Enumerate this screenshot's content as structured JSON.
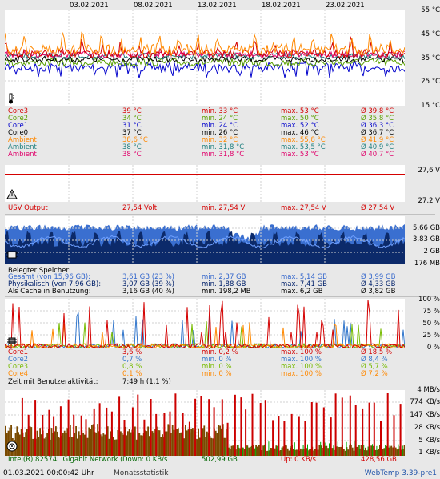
{
  "dates": [
    "03.02.2021",
    "08.02.2021",
    "13.02.2021",
    "18.02.2021",
    "23.02.2021"
  ],
  "temp": {
    "axis": [
      "55 °C",
      "45 °C",
      "35 °C",
      "25 °C",
      "15 °C"
    ],
    "rows": [
      {
        "name": "Core3",
        "cur": "39 °C",
        "min": "min. 33 °C",
        "max": "max. 53 °C",
        "avg": "Ø 39,8 °C",
        "color": "#d40000"
      },
      {
        "name": "Core2",
        "cur": "34 °C",
        "min": "min. 24 °C",
        "max": "max. 50 °C",
        "avg": "Ø 35,8 °C",
        "color": "#5aa000"
      },
      {
        "name": "Core1",
        "cur": "31 °C",
        "min": "min. 24 °C",
        "max": "max. 52 °C",
        "avg": "Ø 36,3 °C",
        "color": "#0000cc"
      },
      {
        "name": "Core0",
        "cur": "37 °C",
        "min": "min. 26 °C",
        "max": "max. 46 °C",
        "avg": "Ø 36,7 °C",
        "color": "#000000"
      },
      {
        "name": "Ambient",
        "cur": "38,6 °C",
        "min": "min. 32 °C",
        "max": "max. 55,8 °C",
        "avg": "Ø 41,9 °C",
        "color": "#ff8800"
      },
      {
        "name": "Ambient",
        "cur": "38 °C",
        "min": "min. 31,8 °C",
        "max": "max. 53,5 °C",
        "avg": "Ø 40,9 °C",
        "color": "#208080"
      },
      {
        "name": "Ambient",
        "cur": "38 °C",
        "min": "min. 31,8 °C",
        "max": "max. 53 °C",
        "avg": "Ø 40,7 °C",
        "color": "#e0006a"
      }
    ]
  },
  "ups": {
    "axis": [
      "27,6 V",
      "27,2 V"
    ],
    "row": {
      "name": "USV Output",
      "cur": "27,54 Volt",
      "min": "min. 27,54 V",
      "max": "max. 27,54 V",
      "avg": "Ø 27,54 V"
    }
  },
  "memory": {
    "axis": [
      "5,66 GB",
      "3,83 GB",
      "2 GB",
      "176 MB"
    ],
    "title": "Belegter Speicher:",
    "rows": [
      {
        "name": "Gesamt (von 15,96 GB):",
        "cur": "3,61 GB (23 %)",
        "min": "min. 2,37 GB",
        "max": "max. 5,14 GB",
        "avg": "Ø 3,99 GB",
        "color": "#3366cc"
      },
      {
        "name": "Physikalisch (von 7,96 GB):",
        "cur": "3,07 GB (39 %)",
        "min": "min. 1,88 GB",
        "max": "max. 7,41 GB",
        "avg": "Ø 4,33 GB",
        "color": "#00206a"
      },
      {
        "name": "Als Cache in Benutzung:",
        "cur": "3,16 GB (40 %)",
        "min": "min. 198,2 MB",
        "max": "max. 6,2 GB",
        "avg": "Ø 3,82 GB",
        "color": "#000000"
      }
    ]
  },
  "cpu": {
    "axis": [
      "100 %",
      "75 %",
      "50 %",
      "25 %",
      "0 %"
    ],
    "rows": [
      {
        "name": "Core1",
        "cur": "3,6 %",
        "min": "min. 0,2 %",
        "max": "max. 100 %",
        "avg": "Ø 18,5 %",
        "color": "#d40000"
      },
      {
        "name": "Core2",
        "cur": "0,7 %",
        "min": "min. 0 %",
        "max": "max. 100 %",
        "avg": "Ø 8,4 %",
        "color": "#3377cc"
      },
      {
        "name": "Core3",
        "cur": "0,8 %",
        "min": "min. 0 %",
        "max": "max. 100 %",
        "avg": "Ø 5,7 %",
        "color": "#77bb00"
      },
      {
        "name": "Core4",
        "cur": "0,1 %",
        "min": "min. 0 %",
        "max": "max. 100 %",
        "avg": "Ø 7,2 %",
        "color": "#ff8800"
      }
    ],
    "activity_label": "Zeit mit Benutzeraktivität:",
    "activity_value": "7:49 h (1,1 %)"
  },
  "network": {
    "axis": [
      "4 MB/s",
      "774 KB/s",
      "147 KB/s",
      "28 KB/s",
      "5 KB/s",
      "1 KB/s"
    ],
    "name": "Intel(R) 82574L Gigabit Network (",
    "down": "Down: 0 KB/s",
    "down_total": "502,99 GB",
    "up": "Up: 0 KB/s",
    "up_total": "428,56 GB"
  },
  "footer": {
    "timestamp": "01.03.2021 00:00:42 Uhr",
    "link": "Monatsstatistik",
    "brand": "WebTemp 3.39-pre1"
  }
}
